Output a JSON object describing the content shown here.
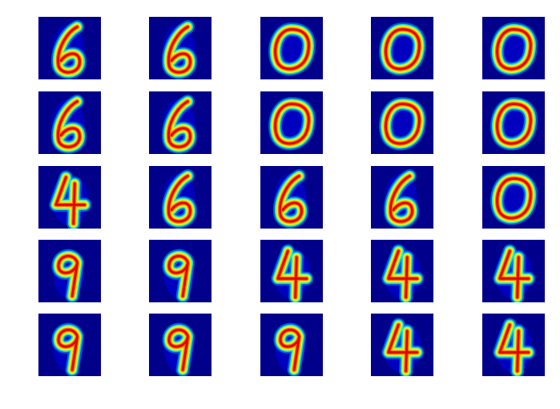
{
  "figure": {
    "rows": 5,
    "cols": 5,
    "colormap": [
      "#00008a",
      "#0000ff",
      "#00a8ff",
      "#29ffce",
      "#ceff29",
      "#ffe000",
      "#ff6a00",
      "#e00000",
      "#8a0000"
    ],
    "tiles": [
      [
        "6",
        "6",
        "0",
        "0",
        "0"
      ],
      [
        "6",
        "6",
        "0",
        "0",
        "0"
      ],
      [
        "4",
        "6",
        "6",
        "6",
        "0"
      ],
      [
        "9",
        "9",
        "4",
        "4",
        "4"
      ],
      [
        "9",
        "9",
        "9",
        "4",
        "4"
      ]
    ]
  }
}
